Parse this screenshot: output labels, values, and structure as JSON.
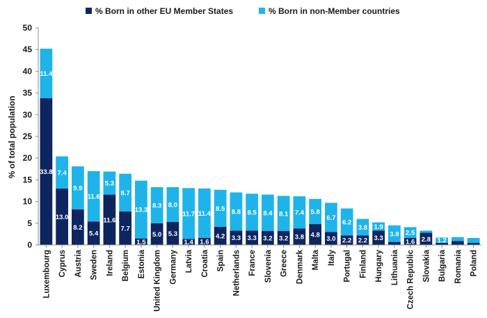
{
  "chart_data": {
    "type": "bar",
    "stacked": true,
    "ylabel": "% of total population",
    "xlabel": "",
    "title": "",
    "ylim": [
      0,
      50
    ],
    "y_ticks": [
      "0",
      "5",
      "10",
      "15",
      "20",
      "25",
      "30",
      "35",
      "40",
      "45",
      "50"
    ],
    "grid": false,
    "legend_position": "top-center",
    "categories": [
      "Luxembourg",
      "Cyprus",
      "Austria",
      "Sweden",
      "Ireland",
      "Belgium",
      "Estonia",
      "United Kingdom",
      "Germany",
      "Latvia",
      "Croatia",
      "Spain",
      "Netherlands",
      "France",
      "Slovenia",
      "Greece",
      "Denmark",
      "Malta",
      "Italy",
      "Portugal",
      "Finland",
      "Hungary",
      "Lithuania",
      "Czech Republic",
      "Slovakia",
      "Bulgaria",
      "Romania",
      "Poland"
    ],
    "series": [
      {
        "name": "% Born in other EU Member States",
        "color": "#0d2660",
        "values": [
          33.8,
          13.0,
          8.2,
          5.4,
          11.6,
          7.7,
          1.5,
          5.0,
          5.3,
          1.4,
          1.6,
          4.2,
          3.3,
          3.3,
          3.2,
          3.2,
          3.8,
          4.8,
          3.0,
          2.2,
          2.2,
          3.3,
          0.7,
          1.6,
          2.8,
          0.5,
          0.9,
          0.5
        ],
        "labels": [
          "33.8",
          "13.0",
          "8.2",
          "5.4",
          "11.6",
          "7.7",
          "1.5",
          "5.0",
          "5.3",
          "1.4",
          "1.6",
          "4.2",
          "3.3",
          "3.3",
          "3.2",
          "3.2",
          "3.8",
          "4.8",
          "3.0",
          "2.2",
          "2.2",
          "3.3",
          "",
          "1.6",
          "2.8",
          "",
          "",
          ""
        ]
      },
      {
        "name": "% Born in non-Member countries",
        "color": "#1eb4ea",
        "values": [
          11.4,
          7.4,
          9.9,
          11.6,
          5.3,
          8.7,
          13.3,
          8.3,
          8.0,
          11.7,
          11.4,
          8.5,
          8.8,
          8.5,
          8.4,
          8.1,
          7.4,
          5.8,
          6.7,
          6.2,
          3.8,
          1.9,
          3.8,
          2.5,
          0.5,
          1.2,
          0.9,
          1.1
        ],
        "labels": [
          "11.4",
          "7.4",
          "9.9",
          "11.6",
          "5.3",
          "8.7",
          "13.3",
          "8.3",
          "8.0",
          "11.7",
          "11.4",
          "8.5",
          "8.8",
          "8.5",
          "8.4",
          "8.1",
          "7.4",
          "5.8",
          "6.7",
          "6.2",
          "3.8",
          "1.9",
          "3.8",
          "2.5",
          "",
          "1.2",
          "",
          ""
        ]
      }
    ]
  }
}
